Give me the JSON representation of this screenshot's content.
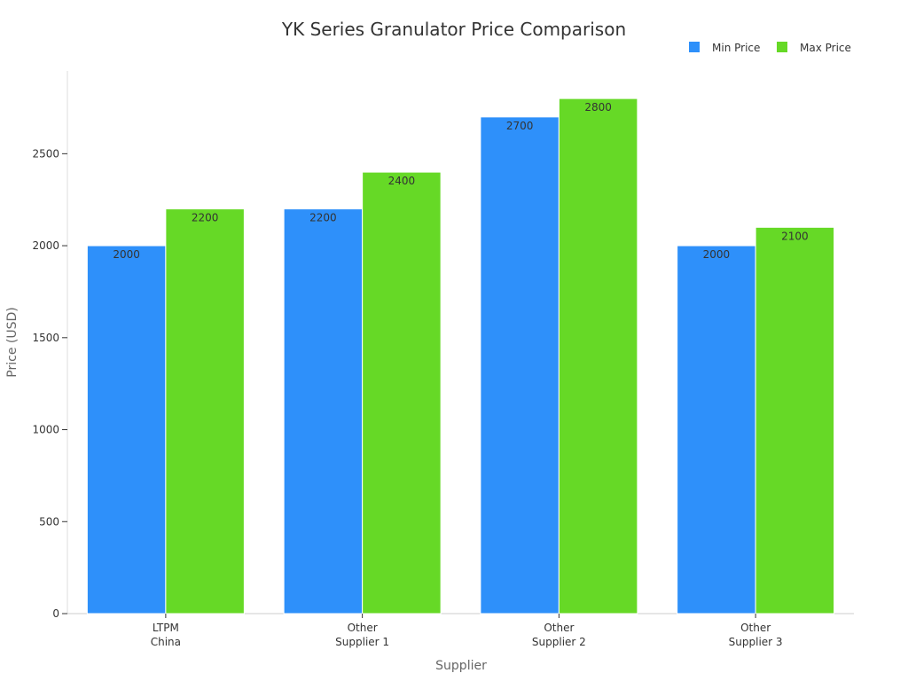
{
  "chart_data": {
    "type": "bar",
    "title": "YK Series Granulator Price Comparison",
    "xlabel": "Supplier",
    "ylabel": "Price (USD)",
    "categories": [
      [
        "LTPM",
        "China"
      ],
      [
        "Other",
        "Supplier 1"
      ],
      [
        "Other",
        "Supplier 2"
      ],
      [
        "Other",
        "Supplier 3"
      ]
    ],
    "series": [
      {
        "name": "Min Price",
        "color": "#2e90fa",
        "values": [
          2000,
          2200,
          2700,
          2000
        ]
      },
      {
        "name": "Max Price",
        "color": "#66d926",
        "values": [
          2200,
          2400,
          2800,
          2100
        ]
      }
    ],
    "ylim": [
      0,
      2950
    ],
    "yticks": [
      0,
      500,
      1000,
      1500,
      2000,
      2500
    ],
    "grid": false,
    "legend_position": "top-right"
  }
}
